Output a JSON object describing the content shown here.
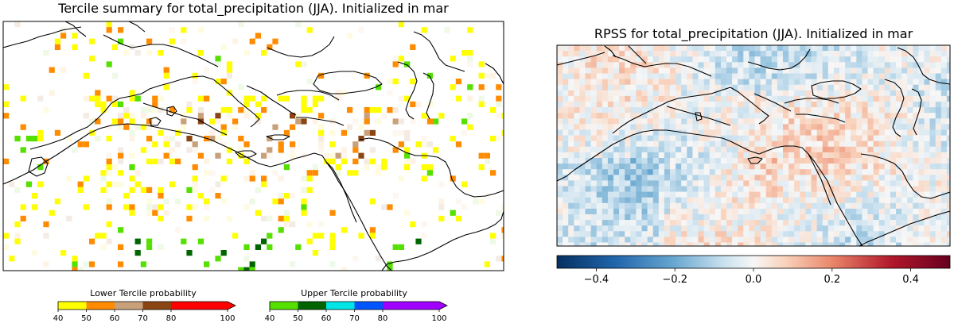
{
  "charts": {
    "left": {
      "title": "Tercile summary for total_precipitation (JJA). Initialized in mar",
      "legend_lower": {
        "title": "Lower Tercile probability",
        "ticks": [
          "40",
          "50",
          "60",
          "70",
          "80",
          "100"
        ],
        "colors": [
          "#ffff00",
          "#ff8c00",
          "#c8a07a",
          "#8b4513",
          "#ff0000"
        ]
      },
      "legend_upper": {
        "title": "Upper Tercile probability",
        "ticks": [
          "40",
          "50",
          "60",
          "70",
          "80",
          "100"
        ],
        "colors": [
          "#55e000",
          "#006400",
          "#00e5e5",
          "#0055ff",
          "#a000ff"
        ]
      }
    },
    "right": {
      "title": "RPSS for total_precipitation (JJA). Initialized in mar",
      "colorbar": {
        "ticks": [
          "−0.4",
          "−0.2",
          "0.0",
          "0.2",
          "0.4"
        ],
        "tick_values": [
          -0.4,
          -0.2,
          0.0,
          0.2,
          0.4
        ],
        "range": [
          -0.5,
          0.5
        ],
        "colormap": "RdBu_r"
      }
    }
  },
  "chart_data": [
    {
      "type": "heatmap",
      "title": "Tercile summary for total_precipitation (JJA). Initialized in mar",
      "legend": [
        "Lower Tercile probability",
        "Upper Tercile probability"
      ],
      "lower_tercile_bins": [
        [
          40,
          50
        ],
        [
          50,
          60
        ],
        [
          60,
          70
        ],
        [
          70,
          80
        ],
        [
          80,
          100
        ]
      ],
      "upper_tercile_bins": [
        [
          40,
          50
        ],
        [
          50,
          60
        ],
        [
          60,
          70
        ],
        [
          70,
          80
        ],
        [
          80,
          100
        ]
      ]
    },
    {
      "type": "heatmap",
      "title": "RPSS for total_precipitation (JJA). Initialized in mar",
      "colorbar_range": [
        -0.5,
        0.5
      ],
      "colorbar_ticks": [
        -0.4,
        -0.2,
        0.0,
        0.2,
        0.4
      ]
    }
  ]
}
